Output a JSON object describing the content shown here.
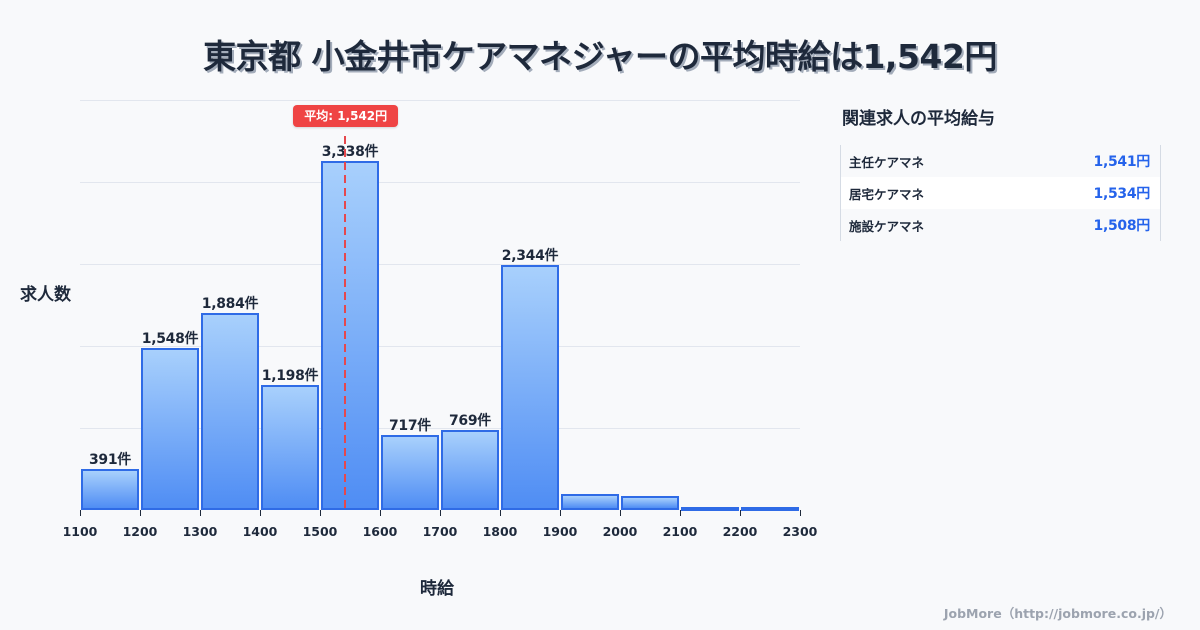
{
  "title": "東京都 小金井市ケアマネジャーの平均時給は1,542円",
  "chart": {
    "y_axis_label": "求人数",
    "x_axis_label": "時給",
    "mean_badge": "平均: 1,542円"
  },
  "related": {
    "heading": "関連求人の平均給与",
    "rows": [
      {
        "label": "主任ケアマネ",
        "value": "1,541円"
      },
      {
        "label": "居宅ケアマネ",
        "value": "1,534円"
      },
      {
        "label": "施設ケアマネ",
        "value": "1,508円"
      }
    ]
  },
  "footer": "JobMore（http://jobmore.co.jp/）",
  "colors": {
    "bar_top": "#a8d0fc",
    "bar_bottom": "#4f8df4",
    "bar_border": "#2f6be6",
    "mean_line": "#ef4444",
    "value_text": "#2563eb",
    "title_text": "#1e293b",
    "background": "#f8f9fb"
  },
  "chart_data": {
    "type": "bar",
    "title": "東京都 小金井市ケアマネジャーの平均時給は1,542円",
    "xlabel": "時給",
    "ylabel": "求人数",
    "bin_edges": [
      1100,
      1200,
      1300,
      1400,
      1500,
      1600,
      1700,
      1800,
      1900,
      2000,
      2100,
      2200,
      2300
    ],
    "categories": [
      "1100-1200",
      "1200-1300",
      "1300-1400",
      "1400-1500",
      "1500-1600",
      "1600-1700",
      "1700-1800",
      "1800-1900",
      "1900-2000",
      "2000-2100",
      "2100-2200",
      "2200-2300"
    ],
    "values": [
      391,
      1548,
      1884,
      1198,
      3338,
      717,
      769,
      2344,
      150,
      130,
      30,
      30
    ],
    "value_labels": [
      "391件",
      "1,548件",
      "1,884件",
      "1,198件",
      "3,338件",
      "717件",
      "769件",
      "2,344件",
      "",
      "",
      "",
      ""
    ],
    "x_ticks": [
      "1100",
      "1200",
      "1300",
      "1400",
      "1500",
      "1600",
      "1700",
      "1800",
      "1900",
      "2000",
      "2100",
      "2200",
      "2300"
    ],
    "xlim": [
      1100,
      2300
    ],
    "ylim": [
      0,
      3920
    ],
    "grid": {
      "y": true,
      "x": false,
      "lines": 5
    },
    "annotations": [
      {
        "type": "vline",
        "x": 1542,
        "label": "平均: 1,542円",
        "style": "dashed",
        "color": "#ef4444"
      }
    ],
    "legend": null
  }
}
